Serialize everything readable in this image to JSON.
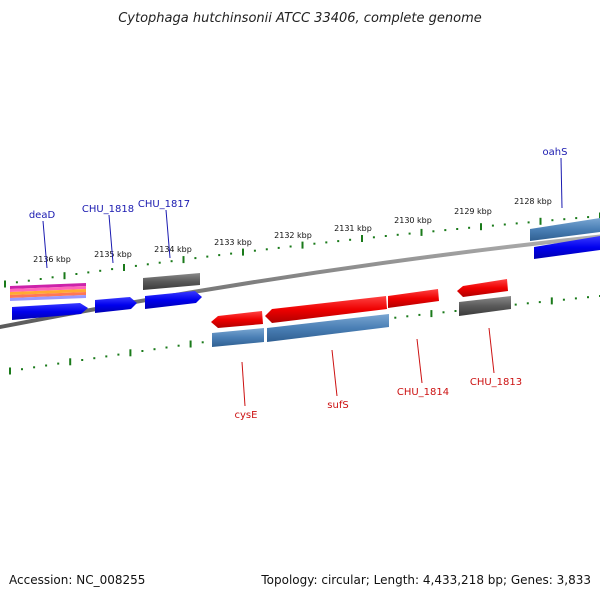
{
  "title": "Cytophaga hutchinsonii ATCC 33406, complete genome",
  "footer": {
    "accession": "Accession: NC_008255",
    "topology": "Topology: circular; Length: 4,433,218 bp; Genes: 3,833"
  },
  "colors": {
    "background": "#ffffff",
    "backbone": "#808080",
    "tick": "#1a7a1a",
    "forward_gene": "#0000ee",
    "reverse_gene": "#ee0000",
    "cds_blue_gray": "#4a7fb5",
    "cds_dark_gray": "#5a5a5a",
    "top_label": "#1a1ab0",
    "bottom_label": "#cc1111"
  },
  "ticks": {
    "kbp_labels": [
      "2128 kbp",
      "2129 kbp",
      "2130 kbp",
      "2131 kbp",
      "2132 kbp",
      "2133 kbp",
      "2134 kbp",
      "2135 kbp",
      "2136 kbp"
    ]
  },
  "genes_top": [
    {
      "id": "oahS",
      "label": "oahS"
    },
    {
      "id": "CHU_1817",
      "label": "CHU_1817"
    },
    {
      "id": "CHU_1818",
      "label": "CHU_1818"
    },
    {
      "id": "deaD",
      "label": "deaD"
    }
  ],
  "genes_bottom": [
    {
      "id": "cysE",
      "label": "cysE"
    },
    {
      "id": "sufS",
      "label": "sufS"
    },
    {
      "id": "CHU_1814",
      "label": "CHU_1814"
    },
    {
      "id": "CHU_1813",
      "label": "CHU_1813"
    }
  ]
}
